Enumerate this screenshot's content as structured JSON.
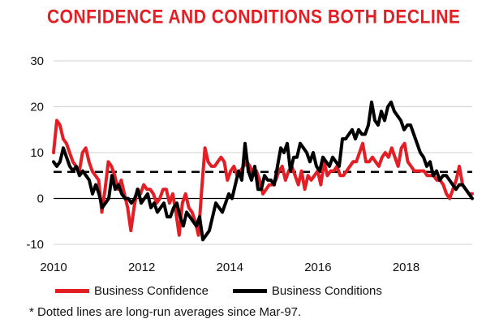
{
  "chart_data": {
    "type": "line",
    "title": "CONFIDENCE AND CONDITIONS BOTH DECLINE",
    "xlabel": "",
    "ylabel": "",
    "x_start": "2010-01",
    "x_end": "2019-07",
    "x_ticks": [
      "2010",
      "2012",
      "2014",
      "2016",
      "2018"
    ],
    "ylim": [
      -10,
      30
    ],
    "y_ticks": [
      "30",
      "20",
      "10",
      "0",
      "-10"
    ],
    "grid": "horizontal",
    "legend": "bottom",
    "series": [
      {
        "name": "Business Confidence",
        "color": "#e31e24",
        "values": [
          10,
          17,
          16,
          13,
          12,
          10,
          8,
          7,
          6,
          10,
          11,
          8,
          6,
          5,
          4,
          -3,
          2,
          8,
          7,
          5,
          2,
          4,
          1,
          -2,
          -7,
          -2,
          2,
          1,
          3,
          2,
          2,
          1,
          -1,
          0,
          2,
          2,
          -1,
          1,
          -3,
          -8,
          -1,
          1,
          -2,
          -3,
          -5,
          -8,
          2,
          11,
          8,
          7,
          7,
          8,
          9,
          8,
          4,
          6,
          7,
          5,
          6,
          7,
          8,
          7,
          5,
          6,
          4,
          1,
          2,
          3,
          3,
          4,
          6,
          7,
          4,
          6,
          7,
          5,
          3,
          6,
          2,
          5,
          4,
          5,
          6,
          3,
          8,
          5,
          6,
          6,
          7,
          5,
          5,
          6,
          7,
          8,
          8,
          10,
          12,
          8,
          8,
          9,
          8,
          7,
          9,
          10,
          9,
          11,
          9,
          7,
          11,
          12,
          8,
          7,
          6,
          6,
          6,
          6,
          5,
          5,
          5,
          4,
          4,
          3,
          1,
          0,
          2,
          4,
          7,
          3,
          2,
          1,
          1
        ],
        "line_width": 4
      },
      {
        "name": "Business Conditions",
        "color": "#000000",
        "values": [
          8,
          7,
          8,
          11,
          9,
          7,
          6,
          7,
          5,
          6,
          5,
          4,
          1,
          3,
          1,
          -2,
          -1,
          0,
          5,
          2,
          3,
          1,
          0,
          0,
          -1,
          0,
          2,
          -1,
          0,
          1,
          -2,
          -1,
          -3,
          -2,
          -1,
          -4,
          -4,
          -2,
          -1,
          -4,
          -6,
          -3,
          -4,
          -5,
          -6,
          -4,
          -9,
          -8,
          -7,
          -4,
          -1,
          -2,
          -3,
          -1,
          1,
          0,
          3,
          6,
          4,
          12,
          6,
          4,
          7,
          2,
          2,
          5,
          4,
          4,
          3,
          7,
          11,
          10,
          12,
          6,
          9,
          9,
          12,
          11,
          10,
          8,
          10,
          7,
          6,
          9,
          8,
          7,
          9,
          8,
          7,
          13,
          13,
          14,
          15,
          13,
          15,
          14,
          14,
          16,
          21,
          17,
          16,
          19,
          17,
          20,
          21,
          19,
          18,
          17,
          15,
          16,
          16,
          14,
          12,
          10,
          9,
          7,
          8,
          5,
          6,
          4,
          5,
          5,
          4,
          3,
          2,
          3,
          3,
          2,
          1,
          0
        ],
        "line_width": 4
      }
    ],
    "long_run_average": 5.8,
    "footnote": "* Dotted lines are long-run averages since Mar-97."
  }
}
